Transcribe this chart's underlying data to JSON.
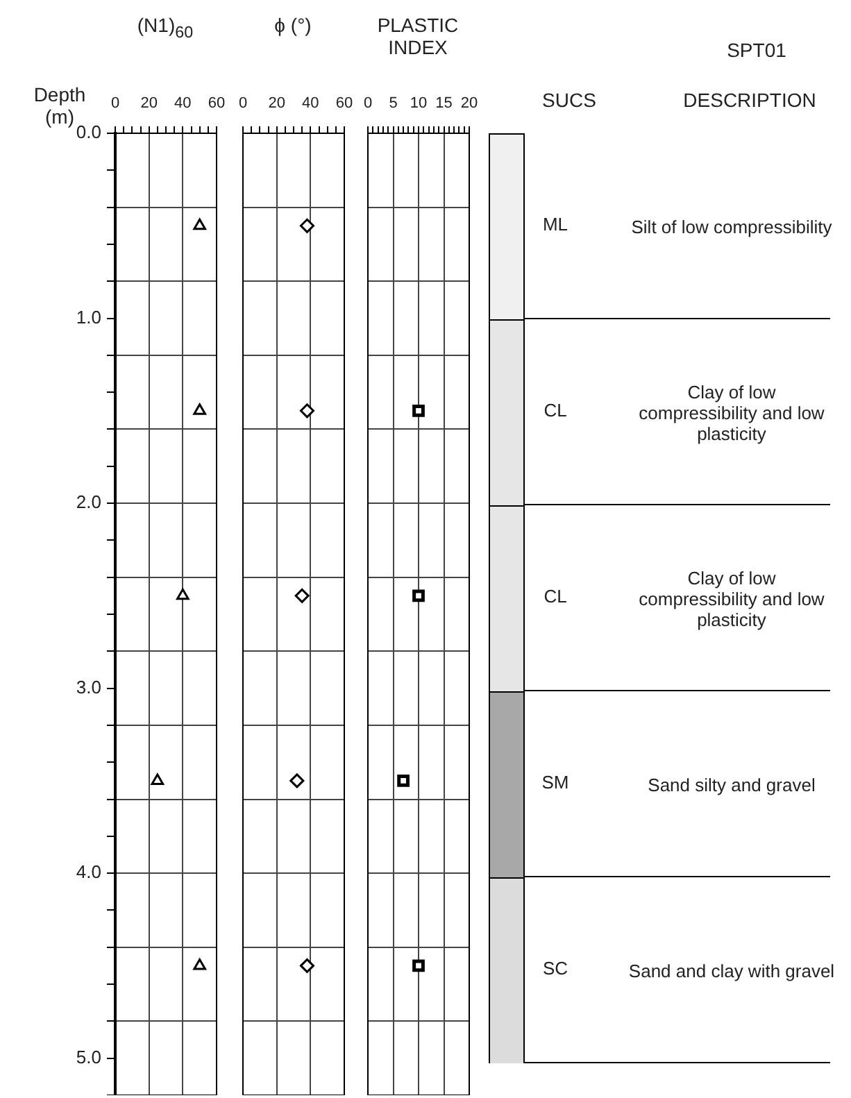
{
  "chart_data": [
    {
      "type": "scatter",
      "title": "(N1)$_{60}$",
      "ylabel": "Depth (m)",
      "marker": "triangle",
      "color": "#000000",
      "grid": true,
      "x": [
        50,
        50,
        40,
        25,
        50
      ],
      "values": [
        0.5,
        1.5,
        2.5,
        3.5,
        4.5
      ],
      "xlim": [
        0,
        60
      ],
      "xticks": [
        0,
        {
          "value": 5,
          "label": null
        },
        {
          "value": 10,
          "label": null
        },
        {
          "value": 15,
          "label": null
        },
        20,
        {
          "value": 25,
          "label": null
        },
        {
          "value": 30,
          "label": null
        },
        {
          "value": 35,
          "label": null
        },
        40,
        {
          "value": 45,
          "label": null
        },
        {
          "value": 50,
          "label": null
        },
        {
          "value": 55,
          "label": null
        },
        60
      ],
      "ylim": [
        5.2,
        0
      ],
      "yticks": [
        {
          "value": 0,
          "label": "0.0"
        },
        {
          "value": 0.2,
          "label": null
        },
        {
          "value": 0.4,
          "label": null
        },
        {
          "value": 0.6,
          "label": null
        },
        {
          "value": 0.8,
          "label": null
        },
        {
          "value": 1,
          "label": "1.0"
        },
        {
          "value": 1.2,
          "label": null
        },
        {
          "value": 1.4,
          "label": null
        },
        {
          "value": 1.6,
          "label": null
        },
        {
          "value": 1.8,
          "label": null
        },
        {
          "value": 2,
          "label": "2.0"
        },
        {
          "value": 2.2,
          "label": null
        },
        {
          "value": 2.4,
          "label": null
        },
        {
          "value": 2.6,
          "label": null
        },
        {
          "value": 2.8,
          "label": null
        },
        {
          "value": 3,
          "label": "3.0"
        },
        {
          "value": 3.2,
          "label": null
        },
        {
          "value": 3.4,
          "label": null
        },
        {
          "value": 3.6,
          "label": null
        },
        {
          "value": 3.8,
          "label": null
        },
        {
          "value": 4,
          "label": "4.0"
        },
        {
          "value": 4.2,
          "label": null
        },
        {
          "value": 4.4,
          "label": null
        },
        {
          "value": 4.6,
          "label": null
        },
        {
          "value": 4.8,
          "label": null
        },
        {
          "value": 5,
          "label": "5.0"
        },
        {
          "value": 5.2,
          "label": null
        }
      ]
    },
    {
      "type": "scatter",
      "title": "ϕ (°)",
      "marker": "diamond",
      "color": "#000000",
      "grid": true,
      "tick_labels": "x",
      "x": [
        38,
        38,
        35,
        32,
        38
      ],
      "values": [
        0.5,
        1.5,
        2.5,
        3.5,
        4.5
      ],
      "xlim": [
        0,
        60
      ],
      "xticks": [
        0,
        {
          "value": 5,
          "label": null
        },
        {
          "value": 10,
          "label": null
        },
        {
          "value": 15,
          "label": null
        },
        20,
        {
          "value": 25,
          "label": null
        },
        {
          "value": 30,
          "label": null
        },
        {
          "value": 35,
          "label": null
        },
        40,
        {
          "value": 45,
          "label": null
        },
        {
          "value": 50,
          "label": null
        },
        {
          "value": 55,
          "label": null
        },
        60
      ],
      "ylim": [
        5.2,
        0
      ],
      "yticks": [
        {
          "value": 0,
          "label": null
        },
        {
          "value": 0.4,
          "label": null
        },
        {
          "value": 0.8,
          "label": null
        },
        {
          "value": 1.2,
          "label": null
        },
        {
          "value": 1.6,
          "label": null
        },
        {
          "value": 2,
          "label": null
        },
        {
          "value": 2.4,
          "label": null
        },
        {
          "value": 2.8,
          "label": null
        },
        {
          "value": 3.2,
          "label": null
        },
        {
          "value": 3.6,
          "label": null
        },
        {
          "value": 4,
          "label": null
        },
        {
          "value": 4.4,
          "label": null
        },
        {
          "value": 4.8,
          "label": null
        },
        {
          "value": 5.2,
          "label": null
        }
      ]
    },
    {
      "type": "scatter",
      "title": "PLASTIC INDEX",
      "marker": "square",
      "color": "#000000",
      "grid": true,
      "tick_labels": "x",
      "x": [
        10,
        10,
        7,
        10
      ],
      "values": [
        1.5,
        2.5,
        3.5,
        4.5
      ],
      "xlim": [
        0,
        20
      ],
      "xticks": [
        0,
        {
          "value": 1,
          "label": null
        },
        {
          "value": 2,
          "label": null
        },
        {
          "value": 3,
          "label": null
        },
        {
          "value": 4,
          "label": null
        },
        5,
        {
          "value": 6,
          "label": null
        },
        {
          "value": 7,
          "label": null
        },
        {
          "value": 8,
          "label": null
        },
        {
          "value": 9,
          "label": null
        },
        10,
        {
          "value": 11,
          "label": null
        },
        {
          "value": 12,
          "label": null
        },
        {
          "value": 13,
          "label": null
        },
        {
          "value": 14,
          "label": null
        },
        15,
        {
          "value": 16,
          "label": null
        },
        {
          "value": 17,
          "label": null
        },
        {
          "value": 18,
          "label": null
        },
        {
          "value": 19,
          "label": null
        },
        20
      ],
      "ylim": [
        5.2,
        0
      ],
      "yticks": [
        {
          "value": 0,
          "label": null
        },
        {
          "value": 0.4,
          "label": null
        },
        {
          "value": 0.8,
          "label": null
        },
        {
          "value": 1.2,
          "label": null
        },
        {
          "value": 1.6,
          "label": null
        },
        {
          "value": 2,
          "label": null
        },
        {
          "value": 2.4,
          "label": null
        },
        {
          "value": 2.8,
          "label": null
        },
        {
          "value": 3.2,
          "label": null
        },
        {
          "value": 3.6,
          "label": null
        },
        {
          "value": 4,
          "label": null
        },
        {
          "value": 4.4,
          "label": null
        },
        {
          "value": 4.8,
          "label": null
        },
        {
          "value": 5.2,
          "label": null
        }
      ]
    },
    {
      "type": "other",
      "title": "SPT01",
      "annotations": [
        "SUCS",
        "DESCRIPTION",
        "ML",
        "Silt of low compressibility",
        "CL",
        "Clay of low compressibility and low plasticity",
        "CL",
        "Clay of low compressibility and low plasticity",
        "SM",
        "Sand silty and gravel",
        "SC",
        "Sand and clay with gravel"
      ]
    }
  ]
}
